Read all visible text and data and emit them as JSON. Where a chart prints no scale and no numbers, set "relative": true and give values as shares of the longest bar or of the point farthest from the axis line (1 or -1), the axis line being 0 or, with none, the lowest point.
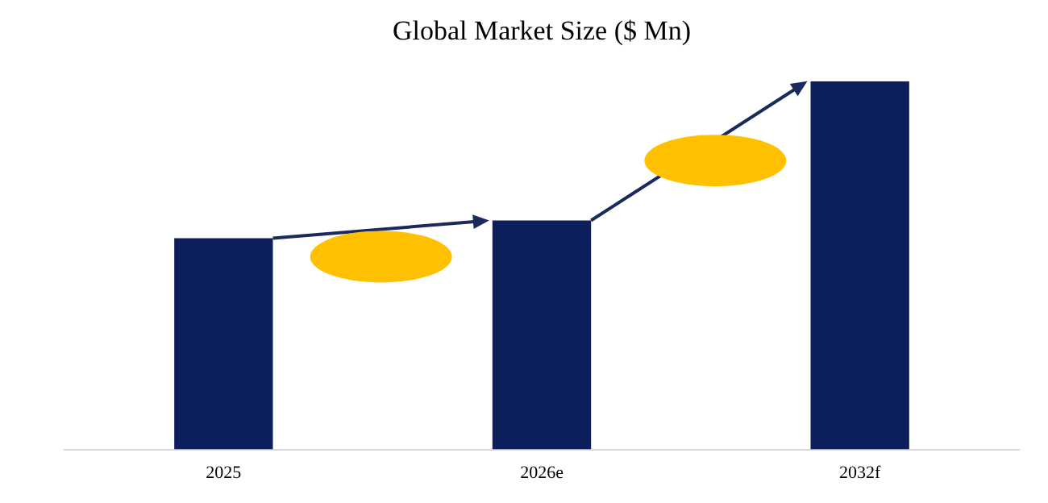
{
  "chart_data": {
    "type": "bar",
    "title": "Global Market Size ($ Mn)",
    "categories": [
      "2025",
      "2026e",
      "2032f"
    ],
    "relative": true,
    "values": [
      0.574,
      0.622,
      1
    ],
    "color": "#0c1f5b",
    "grid": false,
    "legend": false
  }
}
